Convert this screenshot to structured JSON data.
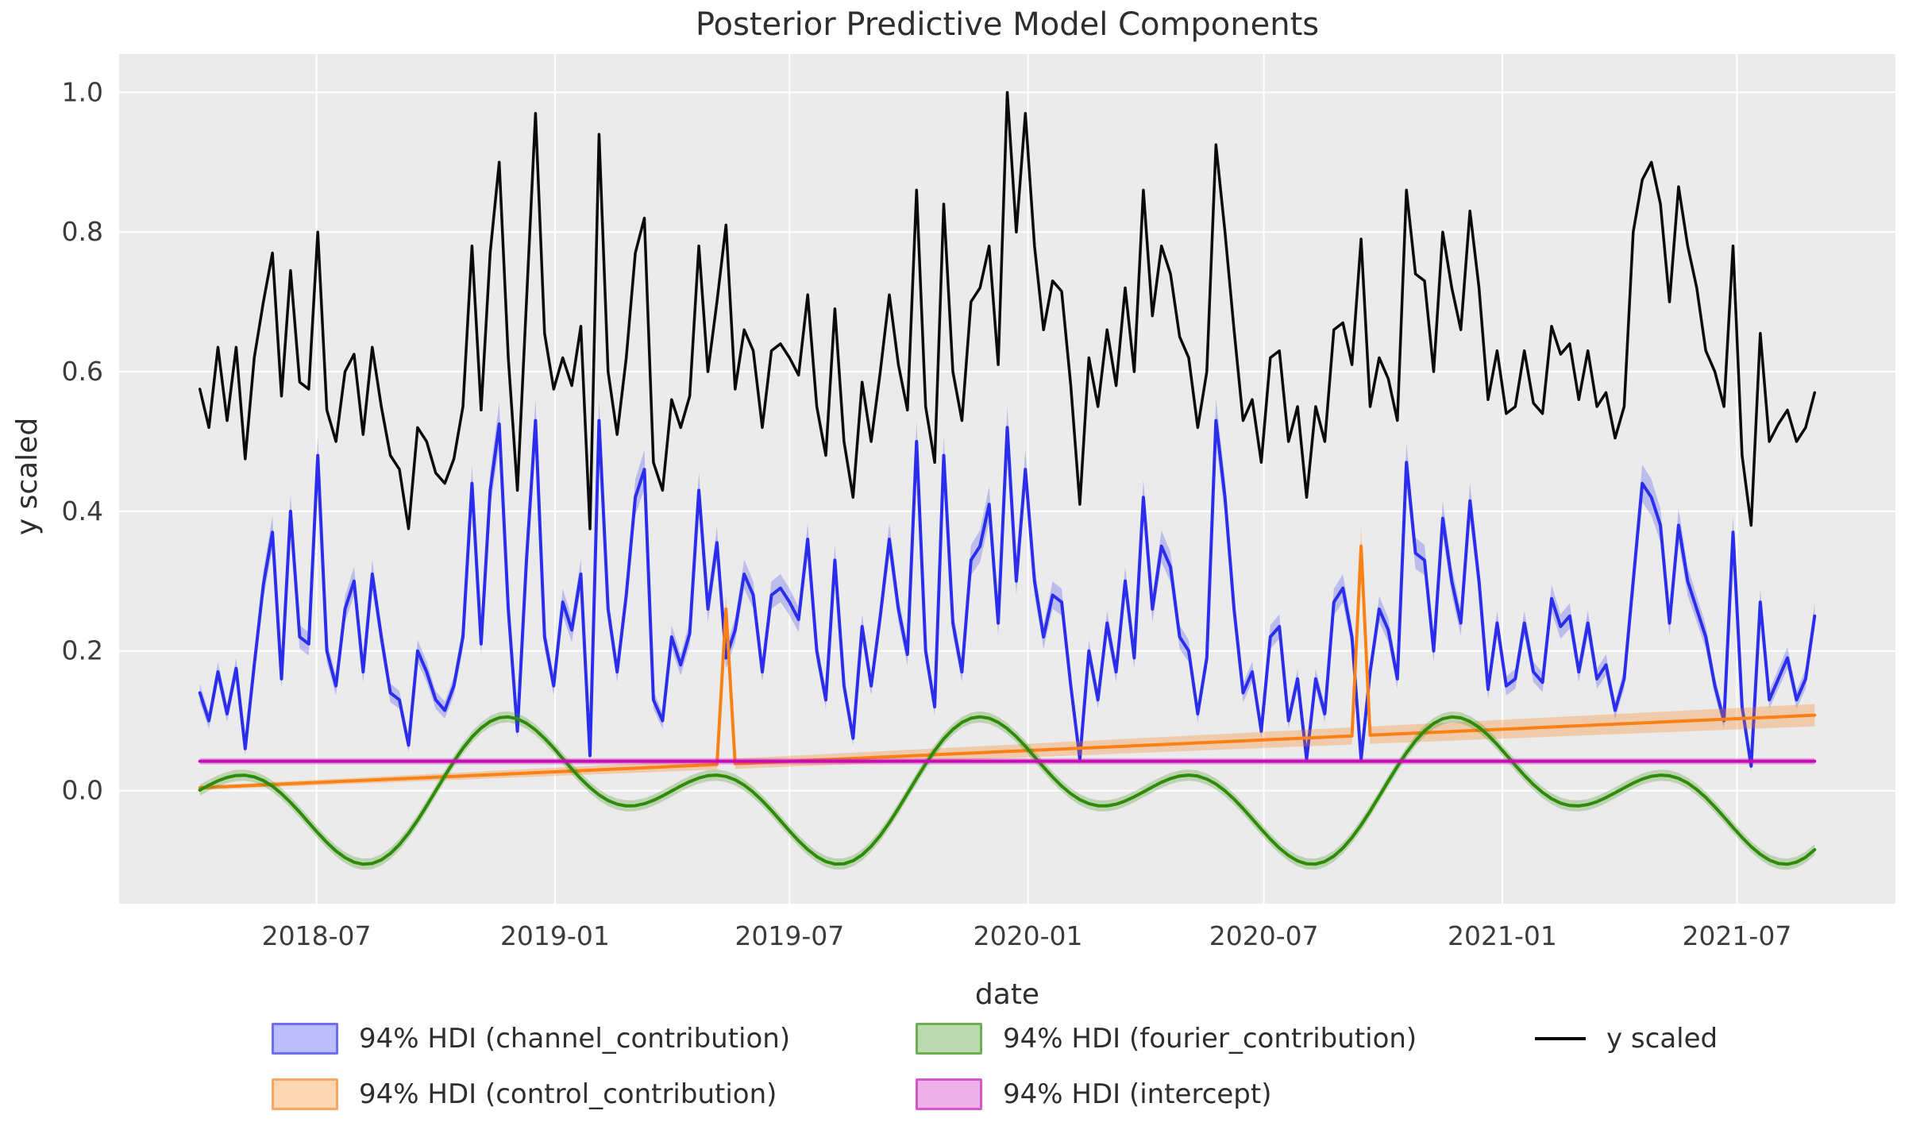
{
  "figure": {
    "title": "Posterior Predictive Model Components",
    "xlabel": "date",
    "ylabel": "y scaled"
  },
  "legend": {
    "items": [
      {
        "label": "94% HDI (channel_contribution)",
        "color": "#2a2eec",
        "swatch": "patch"
      },
      {
        "label": "94% HDI (control_contribution)",
        "color": "#fa8116",
        "swatch": "patch"
      },
      {
        "label": "94% HDI (fourier_contribution)",
        "color": "#2e8b06",
        "swatch": "patch"
      },
      {
        "label": "94% HDI (intercept)",
        "color": "#c90bb5",
        "swatch": "patch"
      },
      {
        "label": "y scaled",
        "color": "#0a0a0a",
        "swatch": "line"
      }
    ]
  },
  "chart_data": {
    "type": "line",
    "title": "Posterior Predictive Model Components",
    "xlabel": "date",
    "ylabel": "y scaled",
    "grid": true,
    "legend_position": "bottom",
    "plot_bg": "#ebebeb",
    "grid_color": "#ffffff",
    "x_start_date": "2018-04-02",
    "x_freq_days": 7,
    "n_points": 179,
    "xlim_weeks": [
      -8.9,
      186.9
    ],
    "ylim": [
      -0.162,
      1.055
    ],
    "x_ticks": [
      {
        "label": "2018-07",
        "week": 12.857
      },
      {
        "label": "2019-01",
        "week": 39.143
      },
      {
        "label": "2019-07",
        "week": 65.0
      },
      {
        "label": "2020-01",
        "week": 91.286
      },
      {
        "label": "2020-07",
        "week": 117.286
      },
      {
        "label": "2021-01",
        "week": 143.571
      },
      {
        "label": "2021-07",
        "week": 169.429
      }
    ],
    "y_ticks": [
      {
        "label": "0.0",
        "value": 0.0
      },
      {
        "label": "0.2",
        "value": 0.2
      },
      {
        "label": "0.4",
        "value": 0.4
      },
      {
        "label": "0.6",
        "value": 0.6
      },
      {
        "label": "0.8",
        "value": 0.8
      },
      {
        "label": "1.0",
        "value": 1.0
      }
    ],
    "series": [
      {
        "name": "94% HDI (channel_contribution)",
        "color": "#2a2eec",
        "line_width": 4,
        "band": {
          "kind": "prop",
          "base": 0.007,
          "factor": 0.045,
          "alpha": 0.25
        },
        "values": [
          0.14,
          0.1,
          0.17,
          0.11,
          0.175,
          0.06,
          0.18,
          0.295,
          0.37,
          0.16,
          0.4,
          0.22,
          0.21,
          0.48,
          0.2,
          0.15,
          0.26,
          0.3,
          0.17,
          0.31,
          0.22,
          0.14,
          0.13,
          0.065,
          0.2,
          0.17,
          0.13,
          0.115,
          0.15,
          0.22,
          0.44,
          0.21,
          0.43,
          0.525,
          0.26,
          0.085,
          0.33,
          0.53,
          0.22,
          0.15,
          0.27,
          0.23,
          0.31,
          0.05,
          0.53,
          0.26,
          0.17,
          0.28,
          0.42,
          0.46,
          0.13,
          0.1,
          0.22,
          0.18,
          0.225,
          0.43,
          0.26,
          0.355,
          0.19,
          0.23,
          0.31,
          0.28,
          0.17,
          0.28,
          0.29,
          0.27,
          0.245,
          0.36,
          0.2,
          0.13,
          0.33,
          0.15,
          0.075,
          0.235,
          0.15,
          0.25,
          0.36,
          0.26,
          0.195,
          0.5,
          0.2,
          0.12,
          0.48,
          0.24,
          0.17,
          0.33,
          0.35,
          0.41,
          0.24,
          0.52,
          0.3,
          0.46,
          0.3,
          0.22,
          0.28,
          0.27,
          0.15,
          0.045,
          0.2,
          0.13,
          0.24,
          0.17,
          0.3,
          0.19,
          0.42,
          0.26,
          0.35,
          0.32,
          0.22,
          0.2,
          0.11,
          0.19,
          0.53,
          0.42,
          0.26,
          0.14,
          0.17,
          0.085,
          0.22,
          0.235,
          0.1,
          0.16,
          0.045,
          0.16,
          0.11,
          0.27,
          0.29,
          0.22,
          0.045,
          0.17,
          0.26,
          0.23,
          0.16,
          0.47,
          0.34,
          0.33,
          0.2,
          0.39,
          0.3,
          0.24,
          0.415,
          0.3,
          0.145,
          0.24,
          0.15,
          0.16,
          0.24,
          0.17,
          0.155,
          0.275,
          0.235,
          0.25,
          0.17,
          0.24,
          0.16,
          0.18,
          0.115,
          0.16,
          0.3,
          0.44,
          0.42,
          0.38,
          0.24,
          0.38,
          0.3,
          0.26,
          0.22,
          0.15,
          0.1,
          0.37,
          0.12,
          0.035,
          0.27,
          0.13,
          0.16,
          0.19,
          0.13,
          0.16,
          0.25
        ]
      },
      {
        "name": "94% HDI (control_contribution)",
        "color": "#fa8116",
        "line_width": 4,
        "gen": {
          "kind": "trend_events",
          "start": 0.004,
          "end": 0.108,
          "events": [
            {
              "week": 58,
              "date": "2019-05-13",
              "value": 0.26
            },
            {
              "week": 128,
              "date": "2020-09-14",
              "value": 0.35
            }
          ]
        },
        "band": {
          "kind": "linear",
          "start": 0.003,
          "end": 0.016,
          "alpha": 0.3,
          "event_halfwidths": [
            {
              "week": 58,
              "hw": 0.022
            },
            {
              "week": 128,
              "hw": 0.03
            }
          ]
        }
      },
      {
        "name": "94% HDI (fourier_contribution)",
        "color": "#2e8b06",
        "line_width": 4,
        "gen": {
          "kind": "fourier_yearly",
          "amplitude": 0.06,
          "start_dayofyear": 92,
          "period_days": 365.5,
          "formula": "A*(cos(2*pi*doy/365.5) - sin(4*pi*doy/365.5))",
          "peak": 0.105,
          "trough": -0.105
        },
        "band": {
          "kind": "const",
          "hw": 0.008,
          "alpha": 0.25
        }
      },
      {
        "name": "94% HDI (intercept)",
        "color": "#c90bb5",
        "line_width": 4,
        "gen": {
          "kind": "const",
          "value": 0.042
        },
        "band": {
          "kind": "const",
          "hw": 0.0045,
          "alpha": 0.3
        }
      },
      {
        "name": "y scaled",
        "color": "#0a0a0a",
        "line_width": 3.5,
        "values": [
          0.575,
          0.52,
          0.635,
          0.53,
          0.635,
          0.475,
          0.62,
          0.7,
          0.77,
          0.565,
          0.745,
          0.585,
          0.575,
          0.8,
          0.545,
          0.5,
          0.6,
          0.625,
          0.51,
          0.635,
          0.55,
          0.48,
          0.46,
          0.375,
          0.52,
          0.5,
          0.455,
          0.44,
          0.475,
          0.55,
          0.78,
          0.545,
          0.77,
          0.9,
          0.62,
          0.43,
          0.7,
          0.97,
          0.655,
          0.575,
          0.62,
          0.58,
          0.665,
          0.375,
          0.94,
          0.6,
          0.51,
          0.62,
          0.77,
          0.82,
          0.47,
          0.43,
          0.56,
          0.52,
          0.565,
          0.78,
          0.6,
          0.7,
          0.81,
          0.575,
          0.66,
          0.63,
          0.52,
          0.63,
          0.64,
          0.62,
          0.595,
          0.71,
          0.55,
          0.48,
          0.69,
          0.5,
          0.42,
          0.585,
          0.5,
          0.6,
          0.71,
          0.61,
          0.545,
          0.86,
          0.55,
          0.47,
          0.84,
          0.6,
          0.53,
          0.7,
          0.72,
          0.78,
          0.61,
          1.0,
          0.8,
          0.97,
          0.78,
          0.66,
          0.73,
          0.715,
          0.58,
          0.41,
          0.62,
          0.55,
          0.66,
          0.58,
          0.72,
          0.6,
          0.86,
          0.68,
          0.78,
          0.74,
          0.65,
          0.62,
          0.52,
          0.6,
          0.925,
          0.8,
          0.66,
          0.53,
          0.56,
          0.47,
          0.62,
          0.63,
          0.5,
          0.55,
          0.42,
          0.55,
          0.5,
          0.66,
          0.67,
          0.61,
          0.79,
          0.55,
          0.62,
          0.59,
          0.53,
          0.86,
          0.74,
          0.73,
          0.6,
          0.8,
          0.72,
          0.66,
          0.83,
          0.72,
          0.56,
          0.63,
          0.54,
          0.55,
          0.63,
          0.555,
          0.54,
          0.665,
          0.625,
          0.64,
          0.56,
          0.63,
          0.55,
          0.57,
          0.505,
          0.55,
          0.8,
          0.875,
          0.9,
          0.84,
          0.7,
          0.865,
          0.78,
          0.72,
          0.63,
          0.6,
          0.55,
          0.78,
          0.48,
          0.38,
          0.655,
          0.5,
          0.525,
          0.545,
          0.5,
          0.52,
          0.57
        ]
      }
    ]
  }
}
